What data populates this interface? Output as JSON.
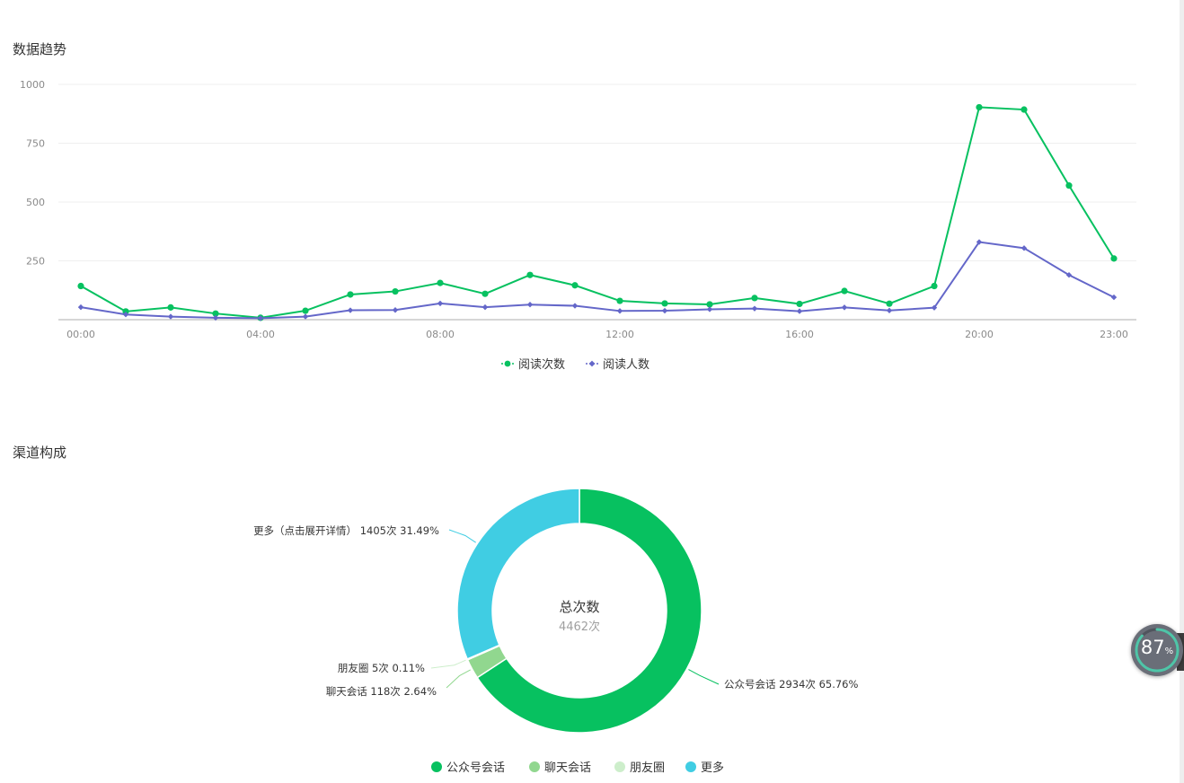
{
  "sections": {
    "trend_title": "数据趋势",
    "channel_title": "渠道构成"
  },
  "chart_data": [
    {
      "type": "line",
      "title": "数据趋势",
      "x": [
        "00:00",
        "01:00",
        "02:00",
        "03:00",
        "04:00",
        "05:00",
        "06:00",
        "07:00",
        "08:00",
        "09:00",
        "10:00",
        "11:00",
        "12:00",
        "13:00",
        "14:00",
        "15:00",
        "16:00",
        "17:00",
        "18:00",
        "19:00",
        "20:00",
        "21:00",
        "22:00",
        "23:00"
      ],
      "x_tick_labels": [
        "00:00",
        "04:00",
        "08:00",
        "12:00",
        "16:00",
        "20:00",
        "23:00"
      ],
      "y_ticks": [
        250,
        500,
        750,
        1000
      ],
      "ylim": [
        0,
        1000
      ],
      "grid": true,
      "legend": "bottom",
      "series": [
        {
          "name": "阅读次数",
          "color": "#07c160",
          "marker": "circle",
          "values": [
            143,
            35,
            52,
            26,
            8,
            38,
            107,
            120,
            156,
            110,
            190,
            146,
            80,
            69,
            65,
            92,
            67,
            122,
            68,
            143,
            903,
            893,
            570,
            260
          ]
        },
        {
          "name": "阅读人数",
          "color": "#6467c9",
          "marker": "diamond",
          "values": [
            53,
            22,
            13,
            8,
            6,
            13,
            40,
            41,
            69,
            53,
            64,
            59,
            37,
            38,
            44,
            47,
            36,
            52,
            39,
            51,
            330,
            304,
            190,
            95
          ]
        }
      ]
    },
    {
      "type": "pie",
      "title": "渠道构成",
      "donut": true,
      "center_title": "总次数",
      "center_value": "4462次",
      "legend": "bottom",
      "slices": [
        {
          "name": "公众号会话",
          "value": 2934,
          "percent": 65.76,
          "color": "#07c160",
          "label": "公众号会话 2934次 65.76%"
        },
        {
          "name": "聊天会话",
          "value": 118,
          "percent": 2.64,
          "color": "#91d78f",
          "label": "聊天会话 118次 2.64%"
        },
        {
          "name": "朋友圈",
          "value": 5,
          "percent": 0.11,
          "color": "#cdeecb",
          "label": "朋友圈 5次 0.11%"
        },
        {
          "name": "更多",
          "value": 1405,
          "percent": 31.49,
          "color": "#40cde3",
          "label": "更多（点击展开详情） 1405次 31.49%"
        }
      ]
    }
  ],
  "widget": {
    "gauge_value": "87",
    "gauge_unit": "%",
    "gauge_fraction": 0.87
  }
}
